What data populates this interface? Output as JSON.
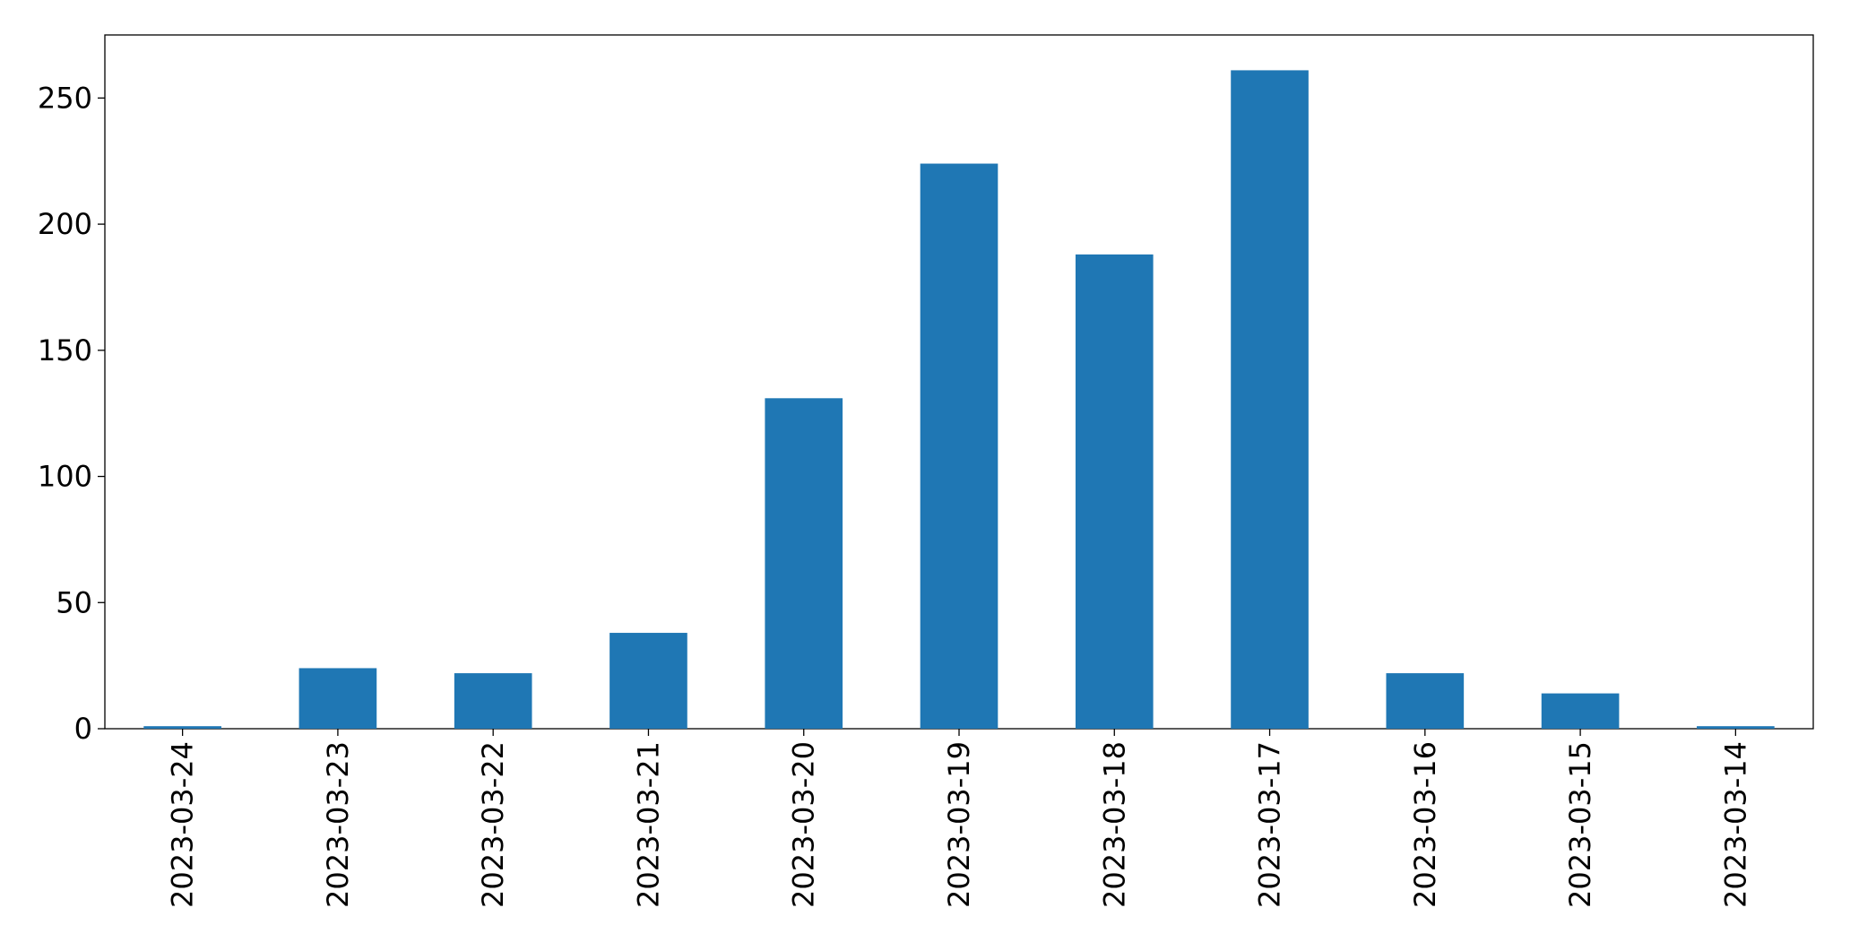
{
  "chart_data": {
    "type": "bar",
    "categories": [
      "2023-03-24",
      "2023-03-23",
      "2023-03-22",
      "2023-03-21",
      "2023-03-20",
      "2023-03-19",
      "2023-03-18",
      "2023-03-17",
      "2023-03-16",
      "2023-03-15",
      "2023-03-14"
    ],
    "values": [
      1,
      24,
      22,
      38,
      131,
      224,
      188,
      261,
      22,
      14,
      1
    ],
    "color": "#1f77b4",
    "ylim": [
      0,
      275
    ],
    "yticks": [
      0,
      50,
      100,
      150,
      200,
      250
    ],
    "grid": false
  }
}
